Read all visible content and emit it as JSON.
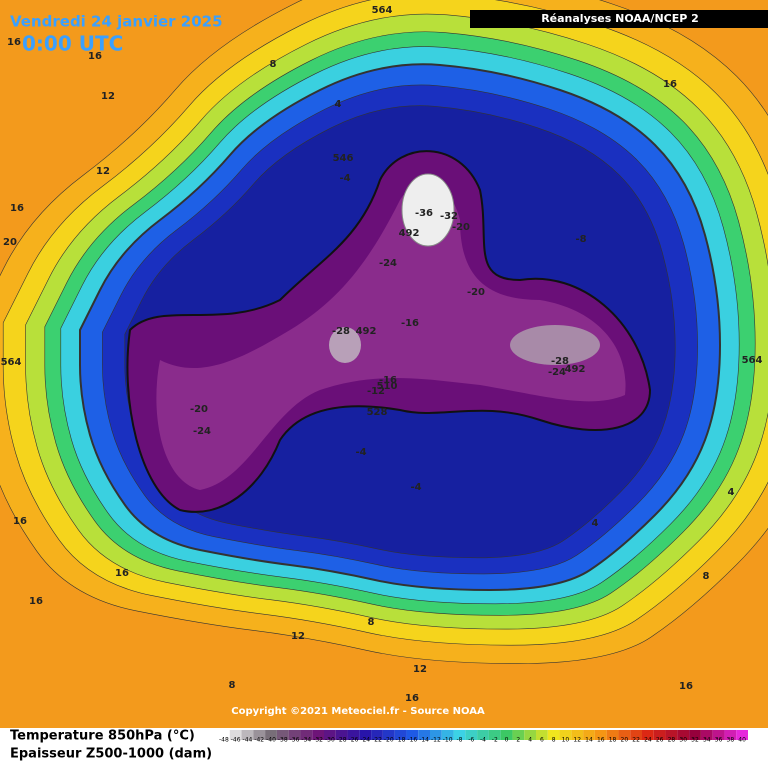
{
  "header": {
    "title": "Vendredi 24 janvier 2025",
    "time": "0:00 UTC",
    "source": "Réanalyses NOAA/NCEP 2"
  },
  "footer": {
    "line1": "Temperature 850hPa (°C)",
    "line2": "Epaisseur Z500-1000 (dam)",
    "copyright": "Copyright ©2021 Meteociel.fr - Source NOAA"
  },
  "legend": {
    "ticks": [
      -48,
      -46,
      -44,
      -42,
      -40,
      -38,
      -36,
      -34,
      -32,
      -30,
      -28,
      -26,
      -24,
      -22,
      -20,
      -18,
      -16,
      -14,
      -12,
      -10,
      -8,
      -6,
      -4,
      -2,
      0,
      2,
      4,
      6,
      8,
      10,
      12,
      14,
      16,
      18,
      20,
      22,
      24,
      26,
      28,
      30,
      32,
      34,
      36,
      38,
      40
    ]
  },
  "map": {
    "labels": [
      564,
      16,
      16,
      8,
      12,
      4,
      16,
      12,
      16,
      20,
      546,
      -4,
      -36,
      -32,
      -20,
      492,
      -8,
      -24,
      -20,
      -28,
      492,
      -16,
      -28,
      -24,
      492,
      564,
      564,
      -16,
      -12,
      510,
      -20,
      -24,
      528,
      -4,
      -4,
      4,
      16,
      4,
      16,
      8,
      16,
      8,
      12,
      12,
      8,
      16,
      16
    ]
  }
}
